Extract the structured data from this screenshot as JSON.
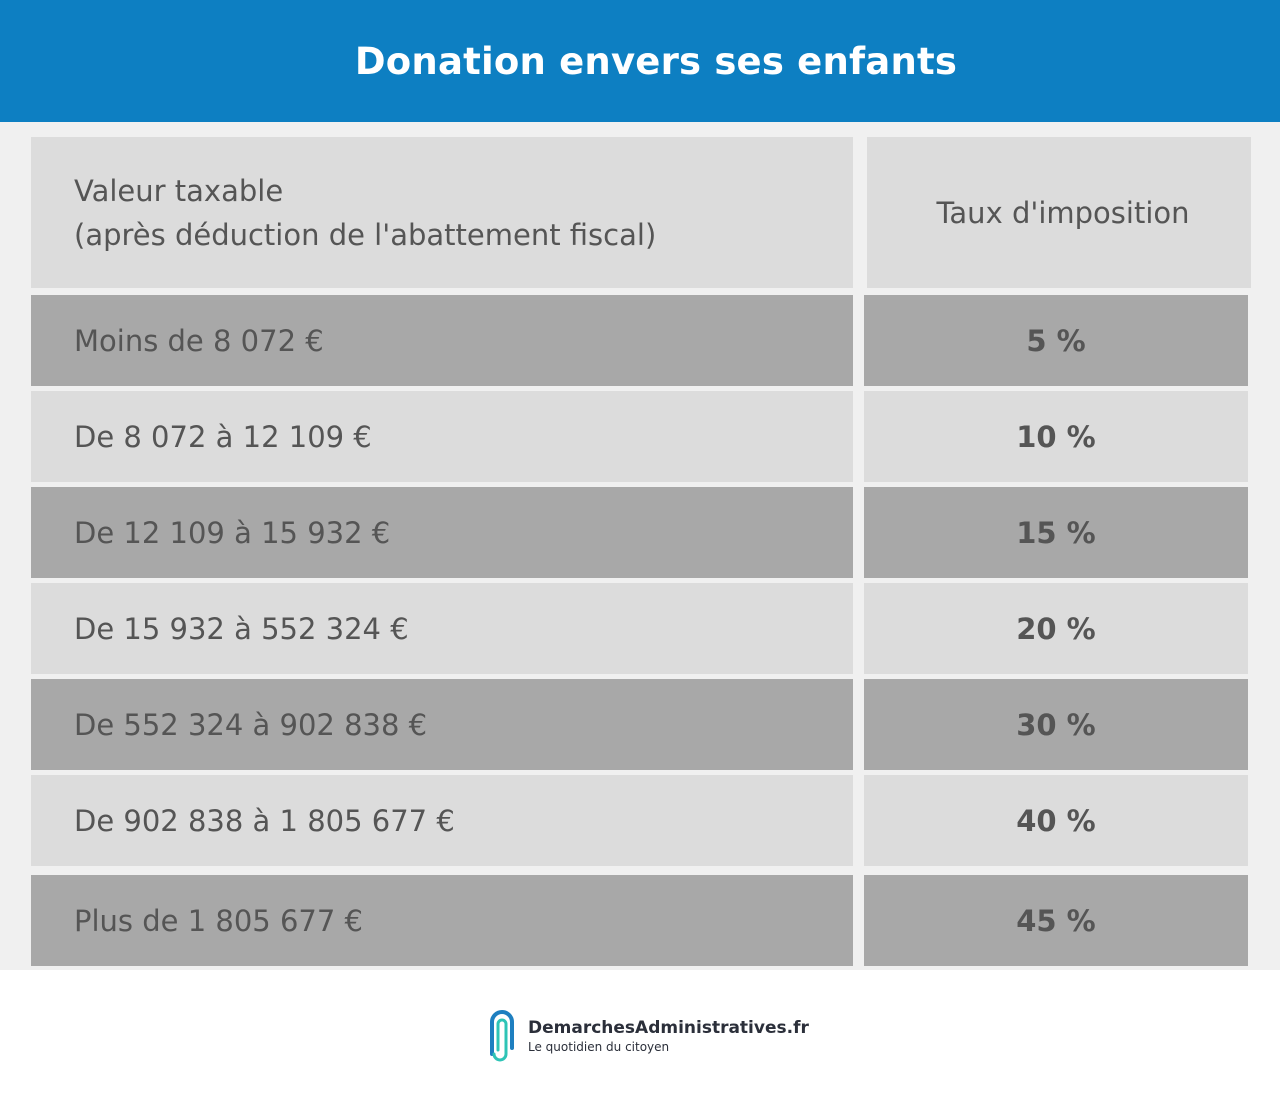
{
  "header": {
    "title": "Donation envers ses enfants"
  },
  "table": {
    "col1_header_line1": "Valeur taxable",
    "col1_header_line2": "(après déduction de l'abattement fiscal)",
    "col2_header": "Taux d'imposition",
    "rows": [
      {
        "range": "Moins de 8 072 €",
        "rate": "5 %"
      },
      {
        "range": "De 8 072 à 12 109 €",
        "rate": "10 %"
      },
      {
        "range": "De 12 109 à 15 932 €",
        "rate": "15 %"
      },
      {
        "range": "De 15 932 à 552 324 €",
        "rate": "20 %"
      },
      {
        "range": "De 552 324 à 902 838 €",
        "rate": "30 %"
      },
      {
        "range": "De 902 838 à 1 805 677 €",
        "rate": "40 %"
      },
      {
        "range": "Plus de 1 805 677 €",
        "rate": "45 %"
      }
    ]
  },
  "footer": {
    "brand": "DemarchesAdministratives.fr",
    "tagline": "Le quotidien du citoyen"
  },
  "colors": {
    "banner": "#0d7fc2",
    "row_dark": "#a8a8a8",
    "row_light": "#dcdcdc",
    "text": "#555555"
  }
}
